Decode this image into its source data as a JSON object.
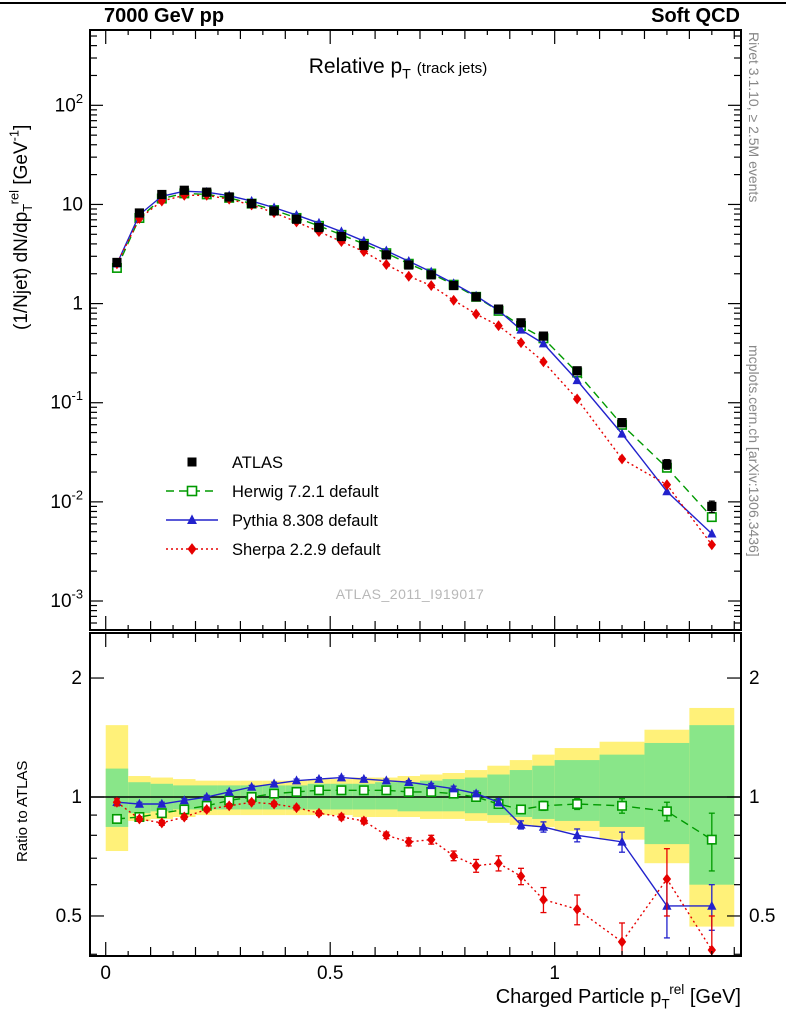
{
  "header": {
    "left": "7000 GeV pp",
    "right": "Soft QCD"
  },
  "side_notes": {
    "top": "Rivet 3.1.10, ≥ 2.5M events",
    "bottom": "mcplots.cern.ch [arXiv:1306.3436]"
  },
  "watermark": "ATLAS_2011_I919017",
  "chart_data": {
    "type": "line",
    "yscale": "log",
    "panels": [
      "spectrum",
      "ratio"
    ],
    "title": "Relative p_{T} ~{(track jets)}",
    "xlabel": "Charged Particle p_{T}^{rel} [GeV]",
    "ylabel": "(1/Njet) dN/dp_{T}^{rel} [GeV^{-1}]",
    "ratio_ylabel": "Ratio to ATLAS",
    "x_range": [
      -0.035,
      1.415
    ],
    "y_range_log": [
      0.00051,
      575
    ],
    "ratio_range_log": [
      0.396,
      2.6
    ],
    "x_major_ticks": [
      0,
      0.5,
      1
    ],
    "x_tick_labels": [
      "0",
      "0.5",
      "1"
    ],
    "y_decades": [
      -3,
      -2,
      -1,
      0,
      1,
      2
    ],
    "ratio_tick_values": [
      0.5,
      1,
      2
    ],
    "ratio_tick_labels": [
      "0.5",
      "1",
      "2"
    ],
    "bin_edges": [
      0,
      0.05,
      0.1,
      0.15,
      0.2,
      0.25,
      0.3,
      0.35,
      0.4,
      0.45,
      0.5,
      0.55,
      0.6,
      0.65,
      0.7,
      0.75,
      0.8,
      0.85,
      0.9,
      0.95,
      1.0,
      1.1,
      1.2,
      1.3,
      1.4
    ],
    "x": [
      0.025,
      0.075,
      0.125,
      0.175,
      0.225,
      0.275,
      0.325,
      0.375,
      0.425,
      0.475,
      0.525,
      0.575,
      0.625,
      0.675,
      0.725,
      0.775,
      0.825,
      0.875,
      0.925,
      0.975,
      1.05,
      1.15,
      1.25,
      1.35
    ],
    "series": [
      {
        "key": "atlas",
        "name": "ATLAS",
        "color": "#000000",
        "marker": "square-filled",
        "line": "none",
        "is_reference": true,
        "values": [
          2.6,
          8.2,
          12.6,
          13.9,
          13.3,
          11.9,
          10.2,
          8.6,
          7.1,
          5.85,
          4.75,
          3.85,
          3.1,
          2.45,
          1.95,
          1.52,
          1.17,
          0.88,
          0.64,
          0.47,
          0.21,
          0.063,
          0.024,
          0.009
        ],
        "err_frac": [
          0.06,
          0.04,
          0.04,
          0.04,
          0.04,
          0.04,
          0.04,
          0.04,
          0.04,
          0.04,
          0.04,
          0.04,
          0.045,
          0.045,
          0.05,
          0.05,
          0.055,
          0.06,
          0.06,
          0.07,
          0.08,
          0.09,
          0.11,
          0.13
        ]
      },
      {
        "key": "herwig",
        "name": "Herwig 7.2.1 default",
        "color": "#009a00",
        "marker": "square-open",
        "line": "dashed",
        "ratio": [
          0.88,
          0.89,
          0.91,
          0.93,
          0.95,
          0.98,
          1.0,
          1.02,
          1.03,
          1.04,
          1.04,
          1.04,
          1.04,
          1.03,
          1.03,
          1.02,
          1.0,
          0.96,
          0.93,
          0.95,
          0.96,
          0.95,
          0.92,
          0.78
        ],
        "ratio_err": [
          0.02,
          0.01,
          0.01,
          0.01,
          0.01,
          0.01,
          0.01,
          0.01,
          0.01,
          0.01,
          0.01,
          0.01,
          0.01,
          0.01,
          0.012,
          0.015,
          0.015,
          0.02,
          0.02,
          0.025,
          0.03,
          0.04,
          0.05,
          0.13
        ]
      },
      {
        "key": "pythia",
        "name": "Pythia 8.308 default",
        "color": "#2222cc",
        "marker": "triangle-filled",
        "line": "solid",
        "ratio": [
          0.97,
          0.96,
          0.96,
          0.98,
          1.0,
          1.03,
          1.06,
          1.08,
          1.1,
          1.11,
          1.12,
          1.11,
          1.1,
          1.09,
          1.07,
          1.05,
          1.02,
          0.97,
          0.85,
          0.84,
          0.8,
          0.77,
          0.53,
          0.53
        ],
        "ratio_err": [
          0.02,
          0.01,
          0.01,
          0.01,
          0.01,
          0.01,
          0.01,
          0.01,
          0.01,
          0.01,
          0.01,
          0.01,
          0.01,
          0.01,
          0.012,
          0.015,
          0.015,
          0.02,
          0.02,
          0.025,
          0.03,
          0.045,
          0.09,
          0.07
        ]
      },
      {
        "key": "sherpa",
        "name": "Sherpa 2.2.9 default",
        "color": "#e60000",
        "marker": "diamond-filled",
        "line": "dotted",
        "ratio": [
          0.97,
          0.88,
          0.86,
          0.89,
          0.93,
          0.95,
          0.97,
          0.96,
          0.94,
          0.91,
          0.89,
          0.87,
          0.8,
          0.77,
          0.78,
          0.71,
          0.67,
          0.68,
          0.63,
          0.55,
          0.52,
          0.43,
          0.62,
          0.41
        ],
        "ratio_err": [
          0.02,
          0.012,
          0.012,
          0.012,
          0.012,
          0.012,
          0.012,
          0.012,
          0.012,
          0.012,
          0.015,
          0.015,
          0.015,
          0.018,
          0.02,
          0.02,
          0.025,
          0.03,
          0.03,
          0.04,
          0.045,
          0.05,
          0.12,
          0.09
        ]
      }
    ],
    "bands": {
      "yellow": "#fff179",
      "green": "#89e689",
      "yellow_lo": [
        0.73,
        0.87,
        0.88,
        0.89,
        0.9,
        0.9,
        0.9,
        0.9,
        0.9,
        0.9,
        0.9,
        0.89,
        0.89,
        0.89,
        0.88,
        0.88,
        0.87,
        0.86,
        0.85,
        0.84,
        0.82,
        0.78,
        0.68,
        0.47
      ],
      "yellow_hi": [
        1.52,
        1.13,
        1.12,
        1.11,
        1.1,
        1.1,
        1.1,
        1.1,
        1.1,
        1.11,
        1.11,
        1.12,
        1.12,
        1.13,
        1.14,
        1.15,
        1.17,
        1.2,
        1.24,
        1.28,
        1.33,
        1.38,
        1.48,
        1.68
      ],
      "green_lo": [
        0.84,
        0.91,
        0.92,
        0.93,
        0.93,
        0.93,
        0.93,
        0.93,
        0.93,
        0.93,
        0.93,
        0.93,
        0.93,
        0.92,
        0.92,
        0.92,
        0.91,
        0.9,
        0.89,
        0.88,
        0.87,
        0.84,
        0.76,
        0.6
      ],
      "green_hi": [
        1.18,
        1.09,
        1.08,
        1.07,
        1.07,
        1.07,
        1.07,
        1.07,
        1.07,
        1.08,
        1.08,
        1.08,
        1.09,
        1.09,
        1.1,
        1.11,
        1.12,
        1.14,
        1.17,
        1.2,
        1.24,
        1.28,
        1.37,
        1.52
      ]
    }
  }
}
